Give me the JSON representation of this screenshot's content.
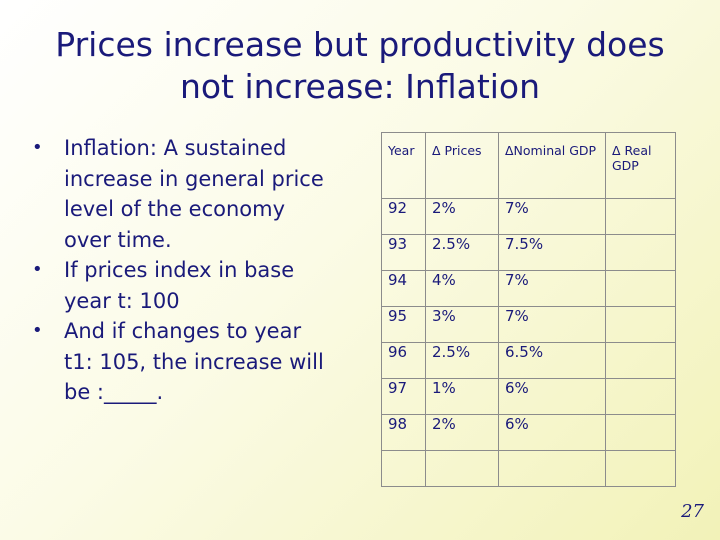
{
  "slide": {
    "title_line1": "Prices increase but productivity does",
    "title_line2": "not increase: Inflation",
    "bullets": [
      "Inflation: A sustained increase in general price level of the economy over time.",
      "If prices index in base year t: 100",
      "And if changes to year t1: 105, the increase will be :_____."
    ],
    "page_number": "27"
  },
  "table": {
    "headers": [
      "Year",
      "Δ Prices",
      "ΔNominal GDP",
      "Δ Real GDP"
    ],
    "rows": [
      [
        "92",
        "2%",
        "7%",
        ""
      ],
      [
        "93",
        "2.5%",
        "7.5%",
        ""
      ],
      [
        "94",
        "4%",
        "7%",
        ""
      ],
      [
        "95",
        "3%",
        "7%",
        ""
      ],
      [
        "96",
        "2.5%",
        "6.5%",
        ""
      ],
      [
        "97",
        "1%",
        "6%",
        ""
      ],
      [
        "98",
        "2%",
        "6%",
        ""
      ]
    ]
  },
  "colors": {
    "text": "#1a1a7a",
    "table_border": "#8c8c8c"
  }
}
